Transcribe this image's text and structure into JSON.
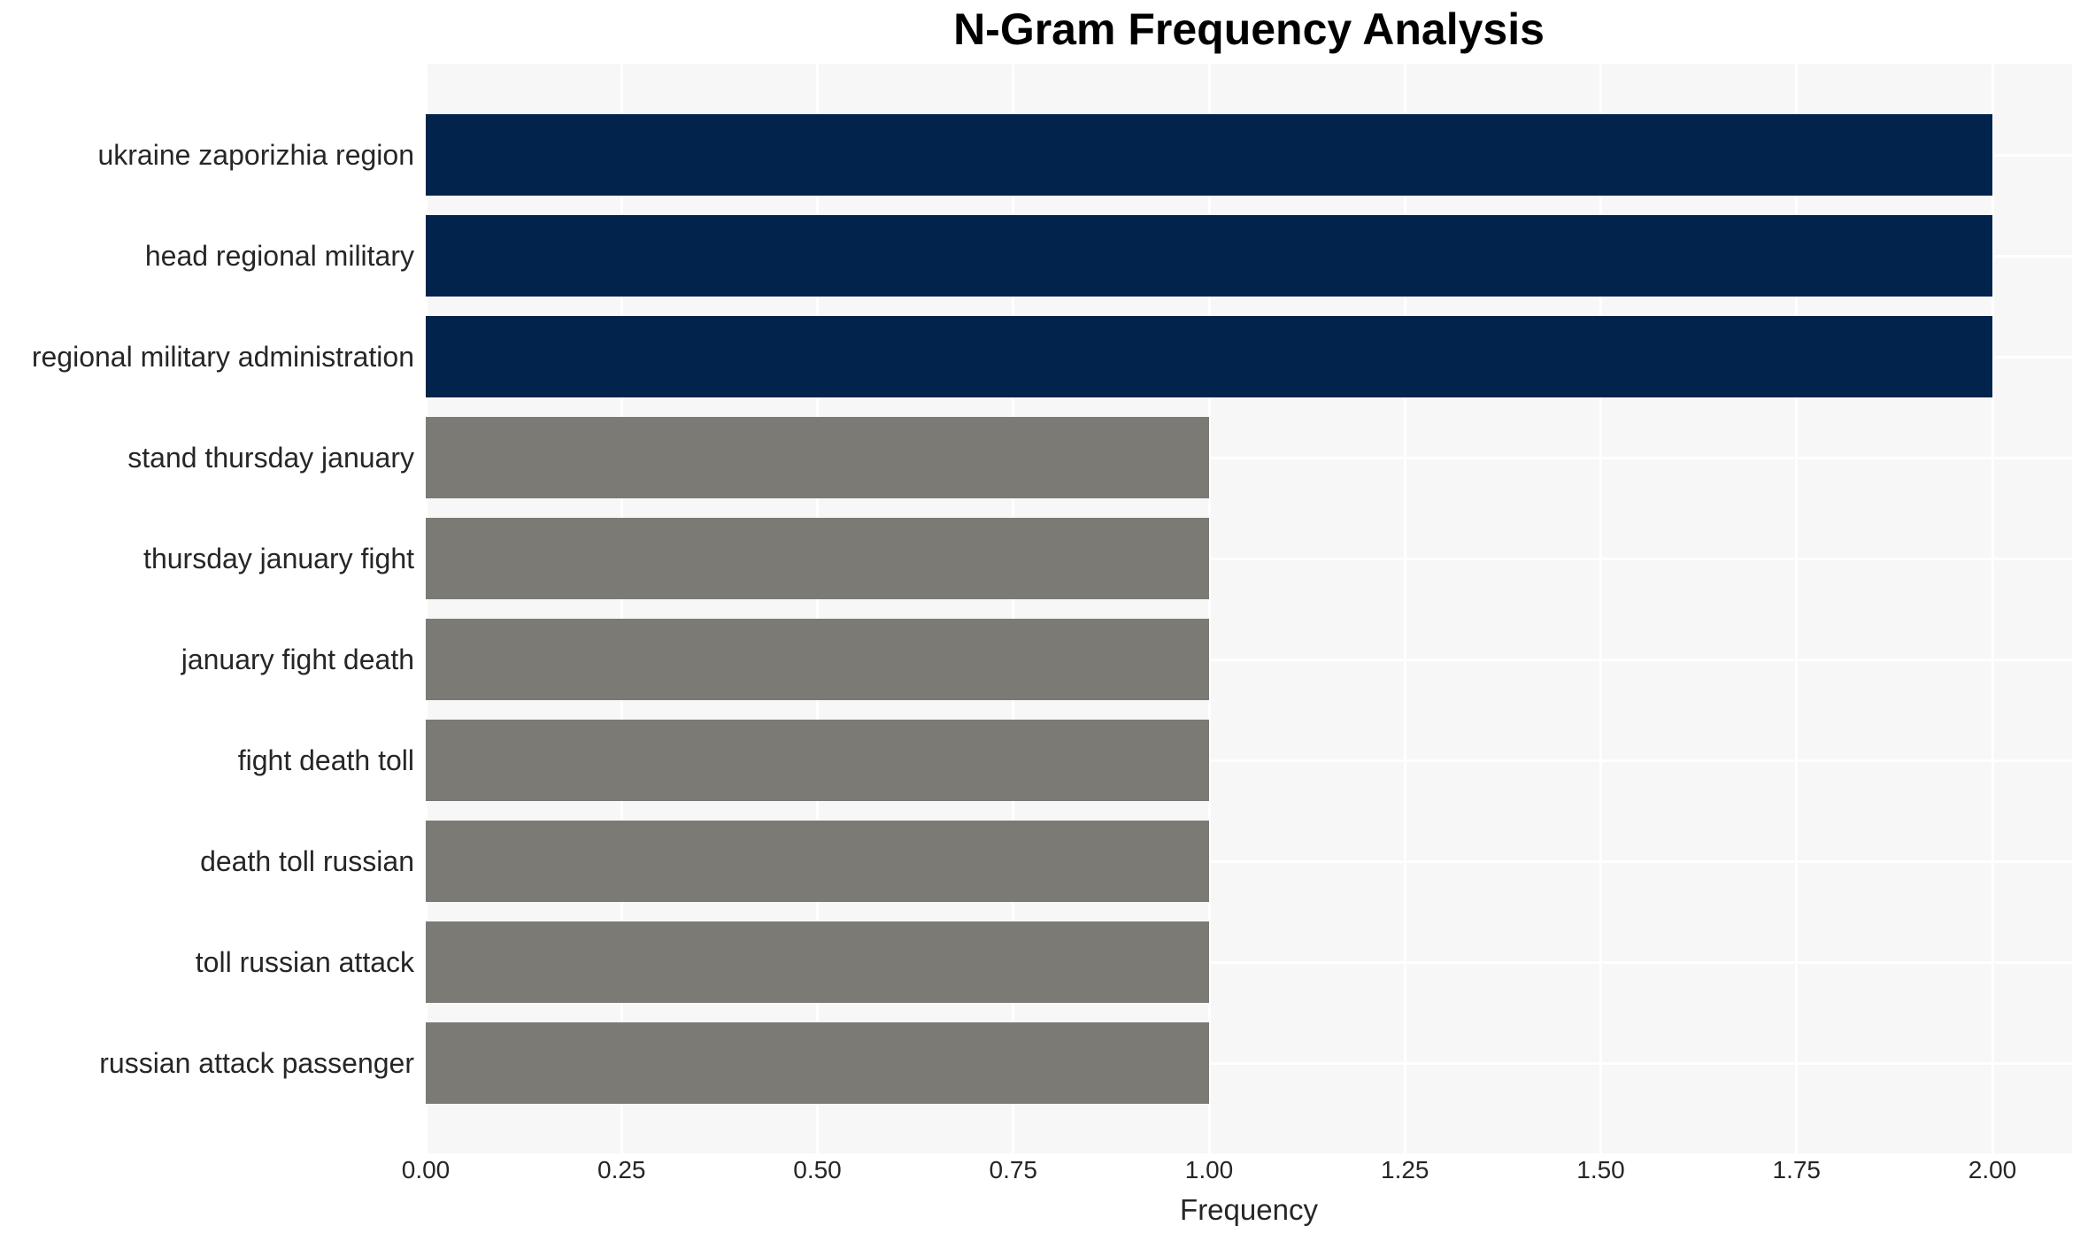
{
  "title": "N-Gram Frequency Analysis",
  "chart_data": {
    "type": "bar",
    "orientation": "horizontal",
    "title": "N-Gram Frequency Analysis",
    "xlabel": "Frequency",
    "ylabel": "",
    "categories": [
      "ukraine zaporizhia region",
      "head regional military",
      "regional military administration",
      "stand thursday january",
      "thursday january fight",
      "january fight death",
      "fight death toll",
      "death toll russian",
      "toll russian attack",
      "russian attack passenger"
    ],
    "values": [
      2,
      2,
      2,
      1,
      1,
      1,
      1,
      1,
      1,
      1
    ],
    "bar_colors": [
      "#02234b",
      "#02234b",
      "#02234b",
      "#7b7a74",
      "#7b7a74",
      "#7b7a74",
      "#7b7a74",
      "#7b7a74",
      "#7b7a74",
      "#7b7a74"
    ],
    "highlight_color": "#02234b",
    "default_color": "#7b7a74",
    "xlim": [
      0,
      2.1
    ],
    "xticks": [
      0.0,
      0.25,
      0.5,
      0.75,
      1.0,
      1.25,
      1.5,
      1.75,
      2.0
    ],
    "xtick_labels": [
      "0.00",
      "0.25",
      "0.50",
      "0.75",
      "1.00",
      "1.25",
      "1.50",
      "1.75",
      "2.00"
    ],
    "grid": "white gridlines on light gray plot background",
    "plot_background": "#f7f7f7",
    "figure_background": "#ffffff",
    "legend": "none"
  }
}
